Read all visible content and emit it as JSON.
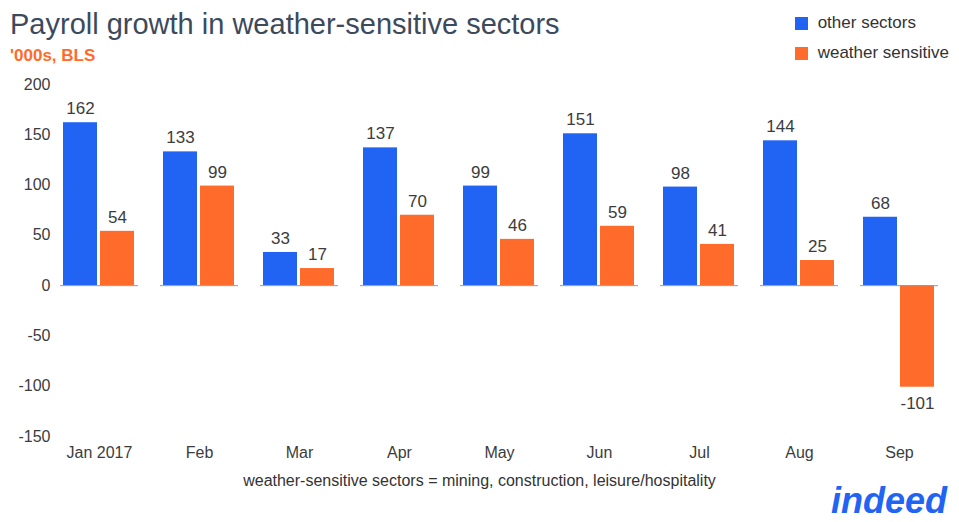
{
  "chart_data": {
    "type": "bar",
    "title": "Payroll growth in weather-sensitive sectors",
    "subtitle": "'000s, BLS",
    "note": "weather-sensitive sectors = mining, construction, leisure/hospitality",
    "logo": "indeed",
    "categories": [
      "Jan 2017",
      "Feb",
      "Mar",
      "Apr",
      "May",
      "Jun",
      "Jul",
      "Aug",
      "Sep"
    ],
    "series": [
      {
        "name": "other sectors",
        "color": "#2164f3",
        "values": [
          162,
          133,
          33,
          137,
          99,
          151,
          98,
          144,
          68
        ]
      },
      {
        "name": "weather sensitive",
        "color": "#ff6b2b",
        "values": [
          54,
          99,
          17,
          70,
          46,
          59,
          41,
          25,
          -101
        ]
      }
    ],
    "ylim": [
      -150,
      200
    ],
    "yticks": [
      -150,
      -100,
      -50,
      0,
      50,
      100,
      150,
      200
    ],
    "grid": false,
    "legend": "top-right",
    "data_labels": true
  }
}
